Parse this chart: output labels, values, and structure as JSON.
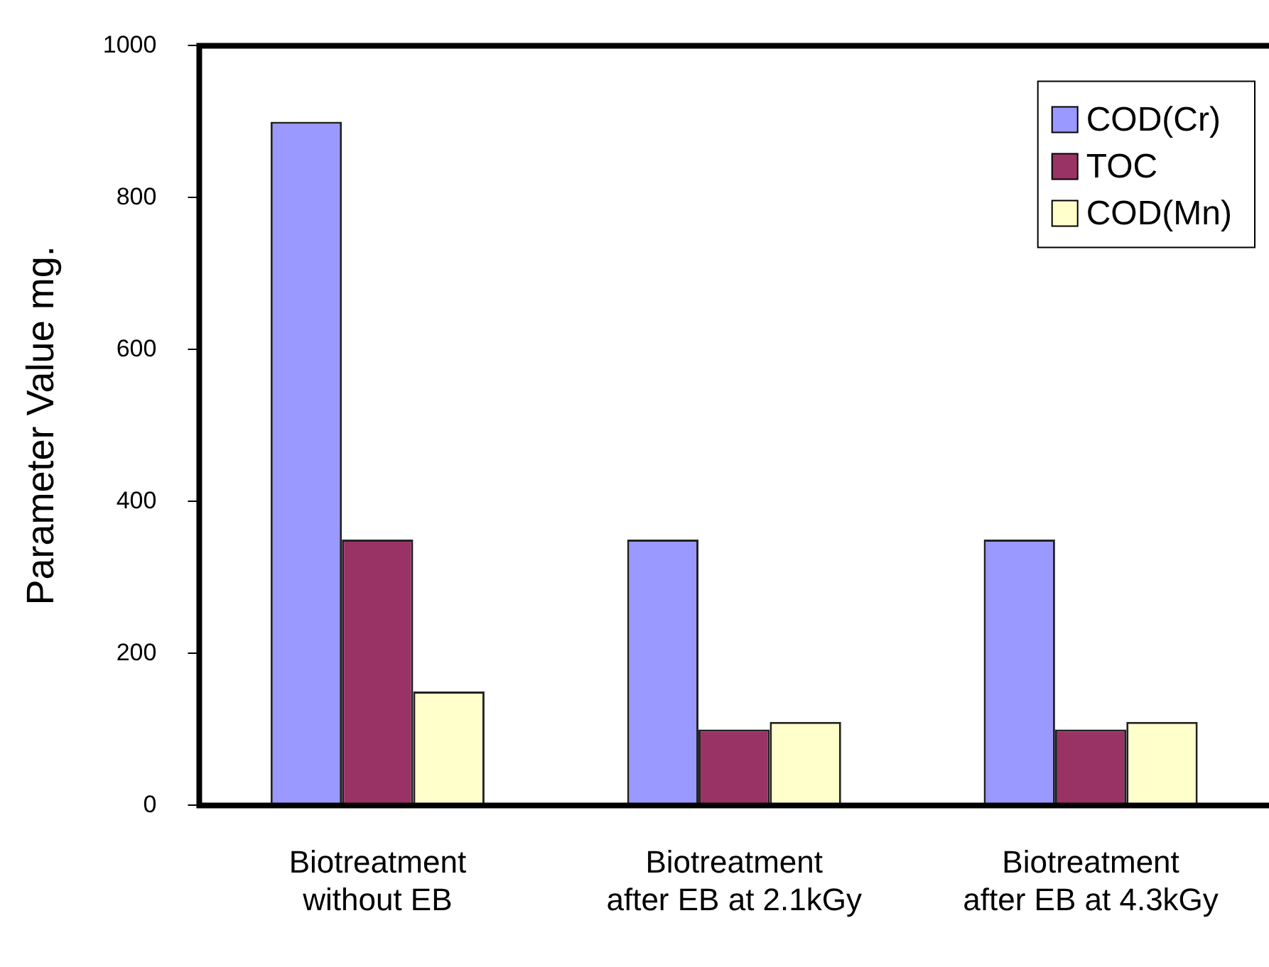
{
  "chart_data": {
    "type": "bar",
    "ylabel": "Parameter Value mg.",
    "categories": [
      "Biotreatment\nwithout EB",
      "Biotreatment\nafter EB at 2.1kGy",
      "Biotreatment\nafter EB at 4.3kGy"
    ],
    "series": [
      {
        "name": "COD(Cr)",
        "color": "#9999ff",
        "values": [
          900,
          350,
          350
        ]
      },
      {
        "name": "TOC",
        "color": "#993366",
        "values": [
          350,
          100,
          100
        ]
      },
      {
        "name": "COD(Mn)",
        "color": "#ffffcc",
        "values": [
          150,
          110,
          110
        ]
      }
    ],
    "ylim": [
      0,
      1000
    ],
    "yticks": [
      0,
      200,
      400,
      600,
      800,
      1000
    ],
    "grid": false,
    "legend": "top right"
  }
}
